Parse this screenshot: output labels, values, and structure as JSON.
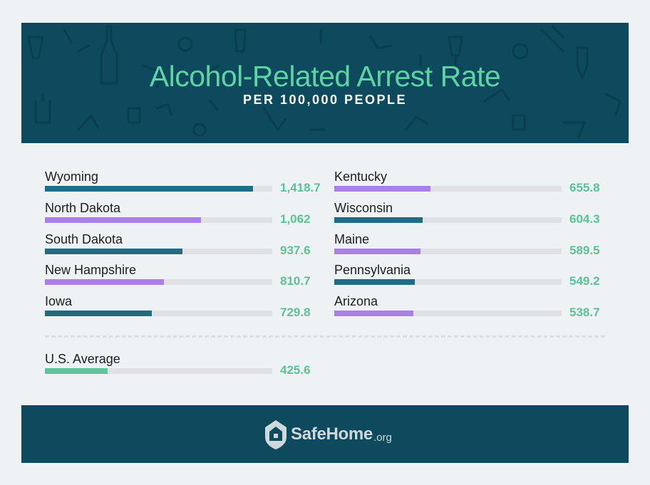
{
  "header": {
    "title": "Alcohol-Related Arrest Rate",
    "subtitle": "PER 100,000 PEOPLE"
  },
  "colors": {
    "teal_bar": "#1f6d85",
    "purple_bar": "#ab7fe8",
    "green_bar": "#62c39a",
    "value_text": "#5cc195",
    "header_bg": "#0d4a5e"
  },
  "chart_data": {
    "type": "bar",
    "orientation": "horizontal",
    "title": "Alcohol-Related Arrest Rate",
    "subtitle": "PER 100,000 PEOPLE",
    "xlim": [
      0,
      1550
    ],
    "columns": [
      [
        {
          "state": "Wyoming",
          "value": 1418.7,
          "label": "1,418.7",
          "color": "teal"
        },
        {
          "state": "North Dakota",
          "value": 1062,
          "label": "1,062",
          "color": "purple"
        },
        {
          "state": "South Dakota",
          "value": 937.6,
          "label": "937.6",
          "color": "teal"
        },
        {
          "state": "New Hampshire",
          "value": 810.7,
          "label": "810.7",
          "color": "purple"
        },
        {
          "state": "Iowa",
          "value": 729.8,
          "label": "729.8",
          "color": "teal"
        }
      ],
      [
        {
          "state": "Kentucky",
          "value": 655.8,
          "label": "655.8",
          "color": "purple"
        },
        {
          "state": "Wisconsin",
          "value": 604.3,
          "label": "604.3",
          "color": "teal"
        },
        {
          "state": "Maine",
          "value": 589.5,
          "label": "589.5",
          "color": "purple"
        },
        {
          "state": "Pennsylvania",
          "value": 549.2,
          "label": "549.2",
          "color": "teal"
        },
        {
          "state": "Arizona",
          "value": 538.7,
          "label": "538.7",
          "color": "purple"
        }
      ]
    ],
    "average": {
      "state": "U.S. Average",
      "value": 425.6,
      "label": "425.6",
      "color": "green"
    }
  },
  "footer": {
    "brand": "SafeHome",
    "tld": ".org",
    "logo_icon": "house-shield-icon"
  }
}
